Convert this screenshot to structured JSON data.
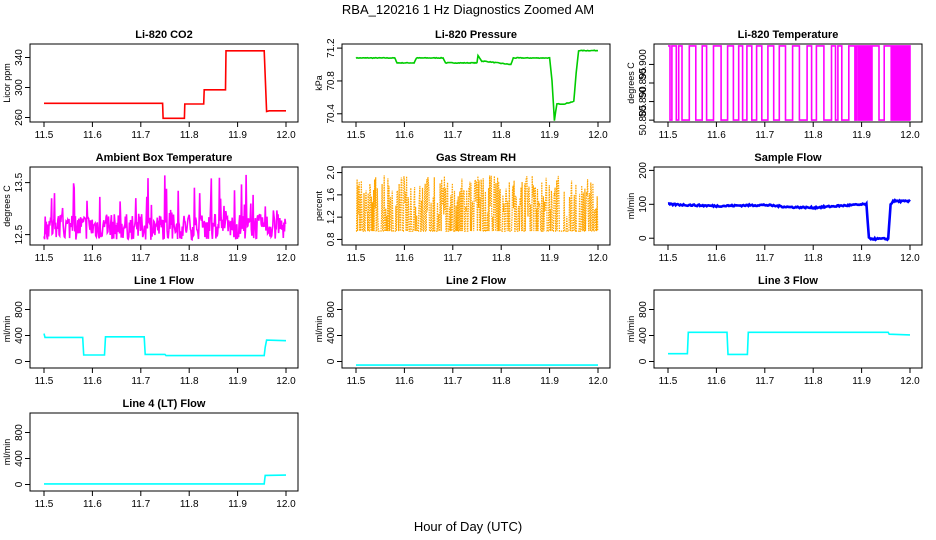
{
  "figure": {
    "title": "RBA_120216  1 Hz Diagnostics Zoomed AM",
    "xlabel": "Hour of Day (UTC)"
  },
  "chart_data": [
    {
      "type": "line",
      "title": "Li-820 CO2",
      "ylabel": "Licor ppm",
      "color": "#ff0000",
      "xlim": [
        11.5,
        12.0
      ],
      "ylim": [
        254,
        358
      ],
      "xticks": [
        "11.5",
        "11.6",
        "11.7",
        "11.8",
        "11.9",
        "12.0"
      ],
      "yticks": [
        "260",
        "300",
        "340"
      ],
      "series": [
        {
          "x": [
            11.5,
            11.745,
            11.746,
            11.79,
            11.791,
            11.83,
            11.831,
            11.875,
            11.876,
            11.955,
            11.96,
            11.965,
            12.0
          ],
          "y": [
            279,
            279,
            259,
            259,
            278,
            278,
            297,
            297,
            349,
            349,
            268,
            269,
            269
          ]
        }
      ]
    },
    {
      "type": "line",
      "title": "Li-820 Pressure",
      "ylabel": "kPa",
      "color": "#00cc00",
      "xlim": [
        11.5,
        12.0
      ],
      "ylim": [
        70.3,
        71.25
      ],
      "xticks": [
        "11.5",
        "11.6",
        "11.7",
        "11.8",
        "11.9",
        "12.0"
      ],
      "yticks": [
        "70.4",
        "70.8",
        "71.2"
      ],
      "series": [
        {
          "x": [
            11.5,
            11.58,
            11.585,
            11.62,
            11.625,
            11.68,
            11.685,
            11.75,
            11.752,
            11.76,
            11.765,
            11.82,
            11.825,
            11.9,
            11.905,
            11.91,
            11.915,
            11.925,
            11.93,
            11.95,
            11.955,
            11.96,
            11.965,
            12.0
          ],
          "y": [
            71.08,
            71.08,
            71.02,
            71.02,
            71.08,
            71.08,
            71.02,
            71.02,
            71.11,
            71.04,
            71.04,
            71.0,
            71.08,
            71.08,
            70.8,
            70.32,
            70.52,
            70.52,
            70.52,
            70.55,
            70.9,
            71.17,
            71.17,
            71.17
          ]
        }
      ]
    },
    {
      "type": "line",
      "title": "Li-820 Temperature",
      "ylabel": "degrees C",
      "color": "#ff00ff",
      "xlim": [
        11.5,
        12.0
      ],
      "ylim": [
        50.8845,
        50.9055
      ],
      "xticks": [
        "11.5",
        "11.6",
        "11.7",
        "11.8",
        "11.9",
        "12.0"
      ],
      "yticks": [
        "50.885",
        "50.890",
        "50.895",
        "50.900"
      ],
      "series": [
        {
          "x": [
            11.5,
            12.0
          ],
          "y": [
            50.885,
            50.905
          ]
        }
      ]
    },
    {
      "type": "line",
      "title": "Ambient Box Temperature",
      "ylabel": "degrees C",
      "color": "#ff00ff",
      "xlim": [
        11.5,
        12.0
      ],
      "ylim": [
        12.3,
        13.8
      ],
      "xticks": [
        "11.5",
        "11.6",
        "11.7",
        "11.8",
        "11.9",
        "12.0"
      ],
      "yticks": [
        "12.5",
        "13.5"
      ],
      "series": [
        {
          "x": [
            11.5,
            12.0
          ],
          "y": [
            12.4,
            13.7
          ]
        }
      ]
    },
    {
      "type": "line",
      "title": "Gas Stream RH",
      "ylabel": "percent",
      "color": "#ffa500",
      "xlim": [
        11.5,
        12.0
      ],
      "ylim": [
        0.7,
        2.1
      ],
      "xticks": [
        "11.5",
        "11.6",
        "11.7",
        "11.8",
        "11.9",
        "12.0"
      ],
      "yticks": [
        "0.8",
        "1.2",
        "1.6",
        "2.0"
      ],
      "series": [
        {
          "x": [
            11.5,
            12.0
          ],
          "y": [
            0.75,
            2.05
          ]
        }
      ]
    },
    {
      "type": "line",
      "title": "Sample Flow",
      "ylabel": "ml/min",
      "color": "#0000ff",
      "xlim": [
        11.5,
        12.0
      ],
      "ylim": [
        -20,
        210
      ],
      "xticks": [
        "11.5",
        "11.6",
        "11.7",
        "11.8",
        "11.9",
        "12.0"
      ],
      "yticks": [
        "0",
        "100",
        "200"
      ],
      "series": [
        {
          "x": [
            11.5,
            11.6,
            11.7,
            11.75,
            11.8,
            11.85,
            11.91,
            11.915,
            11.925,
            11.955,
            11.96,
            11.965,
            12.0
          ],
          "y": [
            100,
            95,
            98,
            92,
            90,
            95,
            100,
            0,
            -2,
            -2,
            100,
            110,
            108
          ]
        }
      ]
    },
    {
      "type": "line",
      "title": "Line 1 Flow",
      "ylabel": "ml/min",
      "color": "#00ffff",
      "xlim": [
        11.5,
        12.0
      ],
      "ylim": [
        -100,
        1100
      ],
      "xticks": [
        "11.5",
        "11.6",
        "11.7",
        "11.8",
        "11.9",
        "12.0"
      ],
      "yticks": [
        "0",
        "400",
        "800"
      ],
      "series": [
        {
          "x": [
            11.5,
            11.502,
            11.58,
            11.582,
            11.625,
            11.627,
            11.707,
            11.709,
            11.75,
            11.752,
            11.955,
            11.957,
            11.96,
            12.0
          ],
          "y": [
            430,
            370,
            370,
            100,
            100,
            380,
            380,
            110,
            110,
            90,
            90,
            220,
            330,
            320
          ]
        }
      ]
    },
    {
      "type": "line",
      "title": "Line 2 Flow",
      "ylabel": "ml/min",
      "color": "#00ffff",
      "xlim": [
        11.5,
        12.0
      ],
      "ylim": [
        -100,
        1100
      ],
      "xticks": [
        "11.5",
        "11.6",
        "11.7",
        "11.8",
        "11.9",
        "12.0"
      ],
      "yticks": [
        "0",
        "400",
        "800"
      ],
      "series": [
        {
          "x": [
            11.5,
            12.0
          ],
          "y": [
            -55,
            -55
          ]
        }
      ]
    },
    {
      "type": "line",
      "title": "Line 3 Flow",
      "ylabel": "ml/min",
      "color": "#00ffff",
      "xlim": [
        11.5,
        12.0
      ],
      "ylim": [
        -100,
        1100
      ],
      "xticks": [
        "11.5",
        "11.6",
        "11.7",
        "11.8",
        "11.9",
        "12.0"
      ],
      "yticks": [
        "0",
        "400",
        "800"
      ],
      "series": [
        {
          "x": [
            11.5,
            11.54,
            11.542,
            11.622,
            11.624,
            11.664,
            11.666,
            11.955,
            11.957,
            12.0
          ],
          "y": [
            120,
            120,
            450,
            450,
            110,
            110,
            450,
            450,
            420,
            410
          ]
        }
      ]
    },
    {
      "type": "line",
      "title": "Line 4 (LT) Flow",
      "ylabel": "ml/min",
      "color": "#00ffff",
      "xlim": [
        11.5,
        12.0
      ],
      "ylim": [
        -100,
        1100
      ],
      "xticks": [
        "11.5",
        "11.6",
        "11.7",
        "11.8",
        "11.9",
        "12.0"
      ],
      "yticks": [
        "0",
        "400",
        "800"
      ],
      "series": [
        {
          "x": [
            11.5,
            11.955,
            11.957,
            12.0
          ],
          "y": [
            10,
            10,
            140,
            145
          ]
        }
      ]
    }
  ]
}
